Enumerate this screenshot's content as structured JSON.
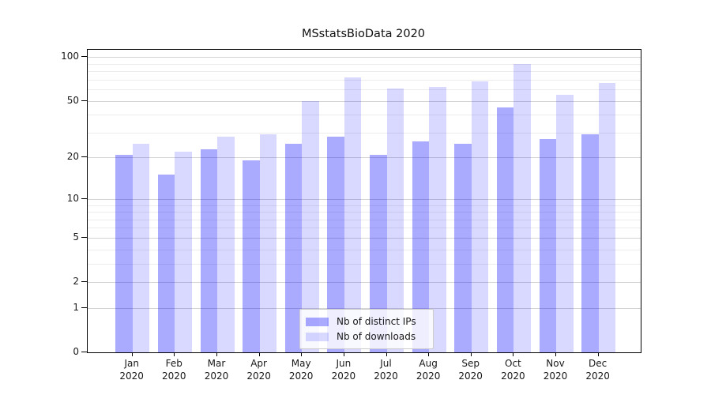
{
  "title": "MSstatsBioData 2020",
  "chart_data": {
    "type": "bar",
    "title": "MSstatsBioData 2020",
    "categories": [
      "Jan 2020",
      "Feb 2020",
      "Mar 2020",
      "Apr 2020",
      "May 2020",
      "Jun 2020",
      "Jul 2020",
      "Aug 2020",
      "Sep 2020",
      "Oct 2020",
      "Nov 2020",
      "Dec 2020"
    ],
    "x_tick_line1": [
      "Jan",
      "Feb",
      "Mar",
      "Apr",
      "May",
      "Jun",
      "Jul",
      "Aug",
      "Sep",
      "Oct",
      "Nov",
      "Dec"
    ],
    "x_tick_line2": "2020",
    "series": [
      {
        "name": "Nb of distinct IPs",
        "fill": "rgba(0,0,255,0.335)",
        "hex_on_white": "#aaaaff",
        "values": [
          21,
          15,
          23,
          19,
          25,
          28,
          21,
          26,
          25,
          45,
          27,
          29
        ]
      },
      {
        "name": "Nb of downloads",
        "fill": "rgba(0,0,255,0.15)",
        "hex_on_white": "#d9d9ff",
        "values": [
          25,
          22,
          28,
          29,
          50,
          72,
          61,
          62,
          68,
          90,
          55,
          66
        ]
      }
    ],
    "yscale": "log1p",
    "ylim": [
      0,
      112
    ],
    "y_major_ticks": [
      0,
      1,
      2,
      5,
      10,
      20,
      50,
      100
    ],
    "y_minor_gridlines": [
      3,
      4,
      6,
      7,
      8,
      9,
      30,
      40,
      60,
      70,
      80,
      90
    ],
    "grid": true,
    "legend_position": "lower center",
    "colors": {
      "grid_major": "#d4d4d4",
      "grid_minor": "#ececec",
      "axis": "#000000",
      "text": "#191919",
      "background": "#ffffff"
    }
  }
}
